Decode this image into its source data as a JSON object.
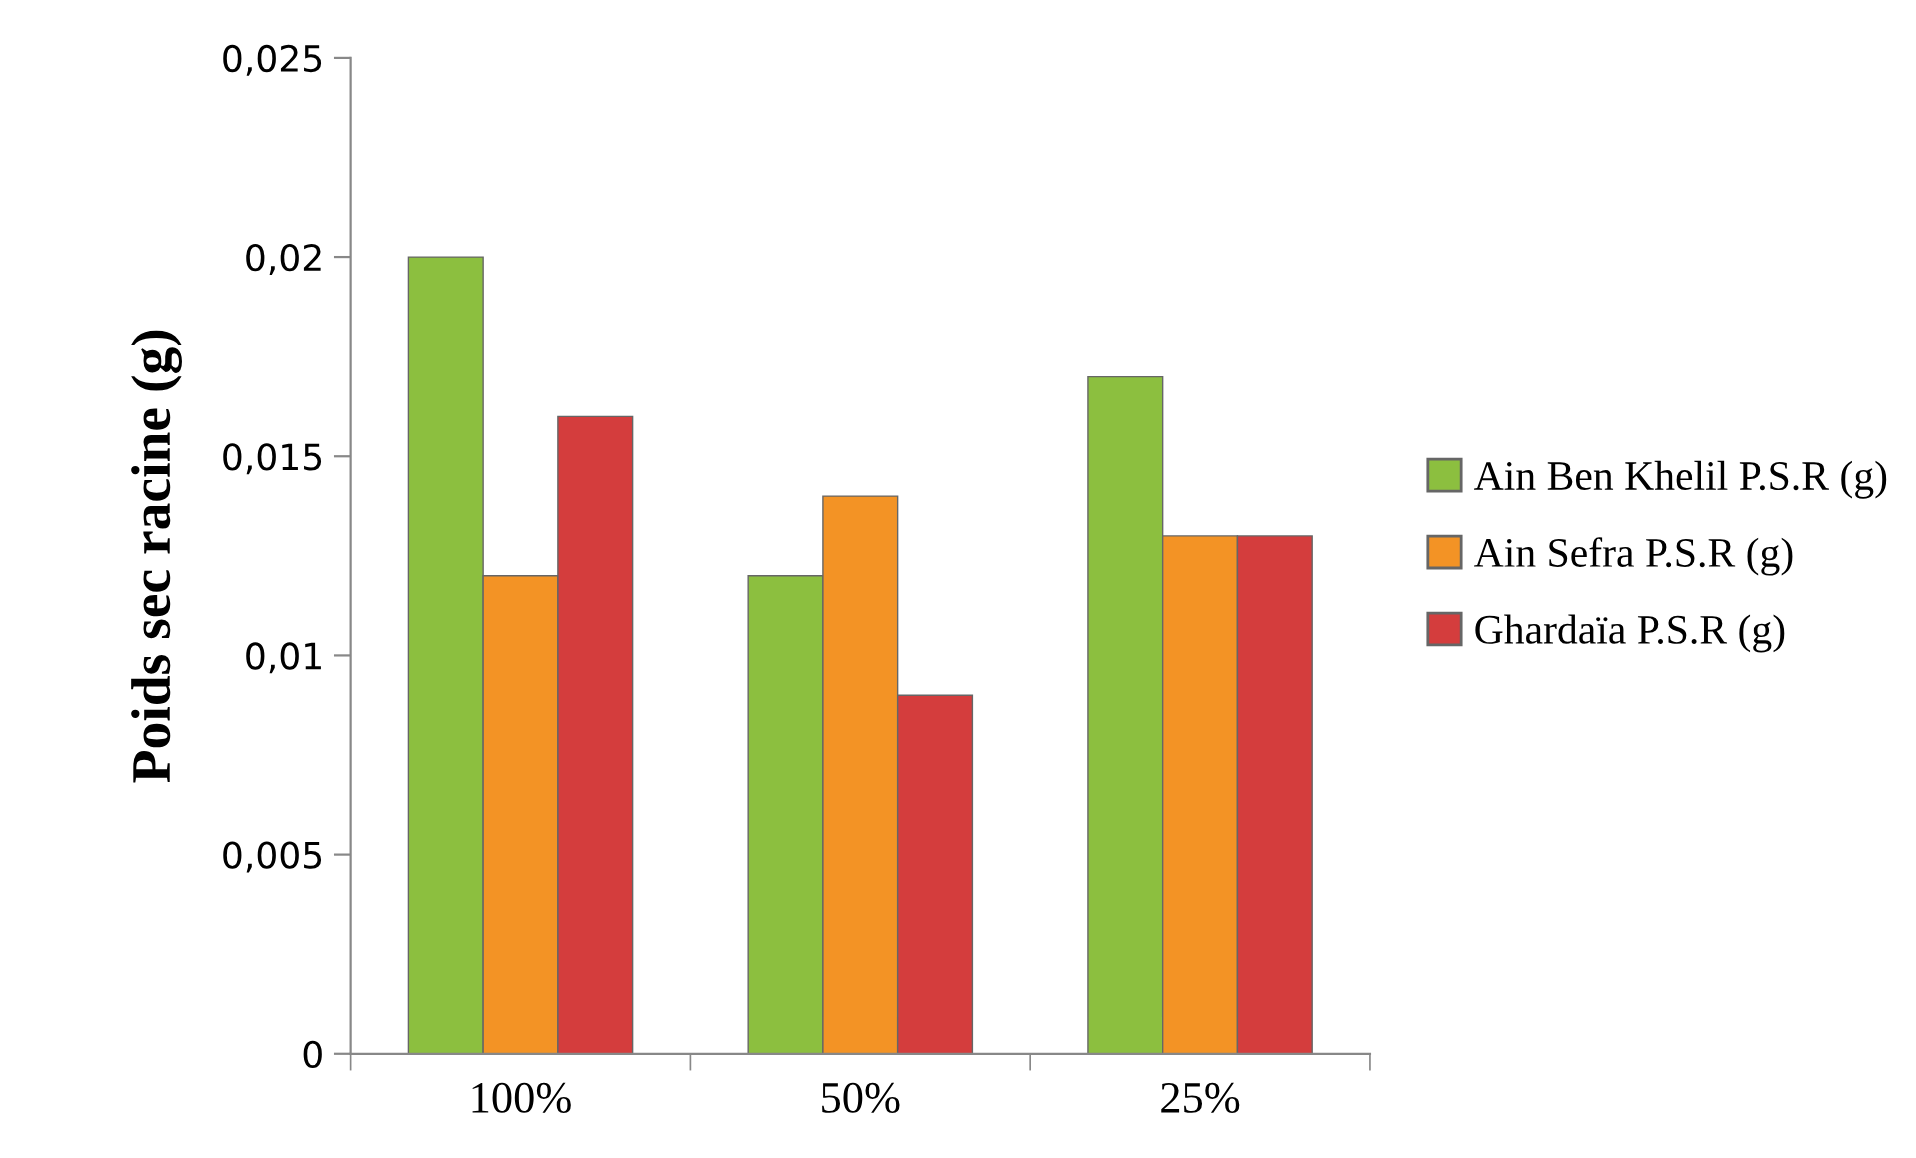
{
  "chart_data": {
    "type": "bar",
    "ylabel": "Poids sec racine (g)",
    "categories": [
      "100%",
      "50%",
      "25%"
    ],
    "series": [
      {
        "name": "Ain Ben Khelil P.S.R (g)",
        "color": "#8cbf3f",
        "values": [
          0.02,
          0.012,
          0.017
        ]
      },
      {
        "name": "Ain Sefra P.S.R (g)",
        "color": "#f39325",
        "values": [
          0.012,
          0.014,
          0.013
        ]
      },
      {
        "name": "Ghardaïa P.S.R (g)",
        "color": "#d43d3d",
        "values": [
          0.016,
          0.009,
          0.013
        ]
      }
    ],
    "ylim": [
      0,
      0.025
    ],
    "yticks": [
      {
        "value": 0,
        "label": "0"
      },
      {
        "value": 0.005,
        "label": "0,005"
      },
      {
        "value": 0.01,
        "label": "0,01"
      },
      {
        "value": 0.015,
        "label": "0,015"
      },
      {
        "value": 0.02,
        "label": "0,02"
      },
      {
        "value": 0.025,
        "label": "0,025"
      }
    ],
    "grid": false,
    "legend": "right"
  }
}
